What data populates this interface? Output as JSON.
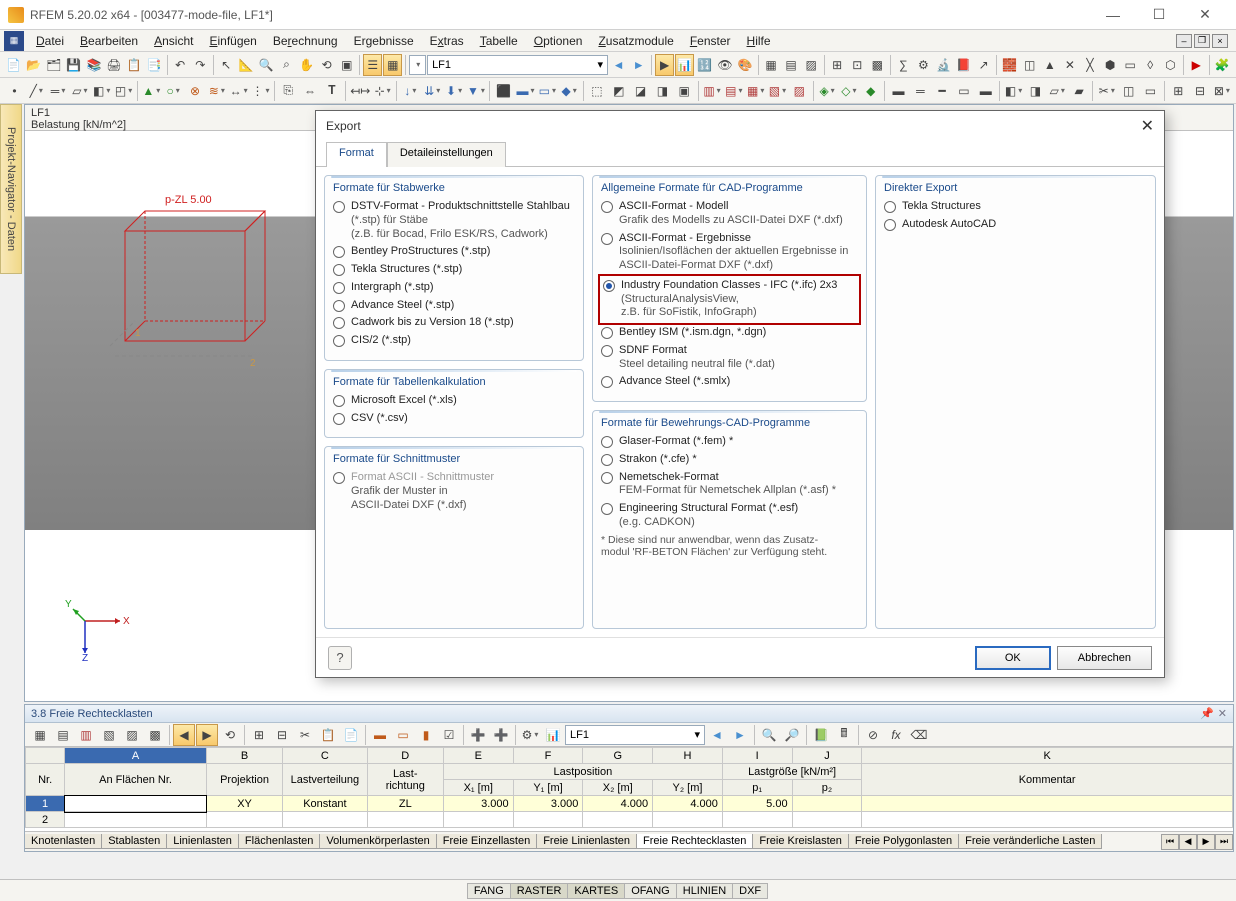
{
  "app": {
    "title": "RFEM 5.20.02 x64 - [003477-mode-file, LF1*]"
  },
  "menu": {
    "items": [
      "Datei",
      "Bearbeiten",
      "Ansicht",
      "Einfügen",
      "Berechnung",
      "Ergebnisse",
      "Extras",
      "Tabelle",
      "Optionen",
      "Zusatzmodule",
      "Fenster",
      "Hilfe"
    ]
  },
  "toolbar1": {
    "combo1": "",
    "lf": "LF1"
  },
  "sidebar": {
    "tab": "Projekt-Navigator - Daten"
  },
  "viewport": {
    "line1": "LF1",
    "line2": "Belastung [kN/m^2]",
    "label": "p-ZL 5.00",
    "axisX": "X",
    "axisZ": "Z",
    "axisY": "Y"
  },
  "dialog": {
    "title": "Export",
    "tabs": [
      "Format",
      "Detaileinstellungen"
    ],
    "groups": {
      "stab": {
        "title": "Formate für Stabwerke",
        "items": [
          {
            "l1": "DSTV-Format - Produktschnittstelle Stahlbau",
            "l2": "(*.stp) für Stäbe",
            "l3": "(z.B. für Bocad, Frilo ESK/RS, Cadwork)"
          },
          {
            "l1": "Bentley ProStructures (*.stp)"
          },
          {
            "l1": "Tekla Structures (*.stp)"
          },
          {
            "l1": "Intergraph (*.stp)"
          },
          {
            "l1": "Advance Steel (*.stp)"
          },
          {
            "l1": "Cadwork bis zu Version 18 (*.stp)"
          },
          {
            "l1": "CIS/2 (*.stp)"
          }
        ]
      },
      "tabkalk": {
        "title": "Formate für Tabellenkalkulation",
        "items": [
          {
            "l1": "Microsoft Excel (*.xls)"
          },
          {
            "l1": "CSV (*.csv)"
          }
        ]
      },
      "schnitt": {
        "title": "Formate für Schnittmuster",
        "items": [
          {
            "l1": "Format ASCII - Schnittmuster",
            "l2": "Grafik der Muster in",
            "l3": "ASCII-Datei DXF (*.dxf)",
            "disabled": true
          }
        ]
      },
      "cad": {
        "title": "Allgemeine Formate für CAD-Programme",
        "items": [
          {
            "l1": "ASCII-Format - Modell",
            "l2": "Grafik des Modells zu ASCII-Datei DXF (*.dxf)"
          },
          {
            "l1": "ASCII-Format - Ergebnisse",
            "l2": "Isolinien/Isoflächen der aktuellen Ergebnisse in",
            "l3": "ASCII-Datei-Format DXF (*.dxf)"
          },
          {
            "l1": "Industry Foundation Classes - IFC (*.ifc) 2x3",
            "l2": "(StructuralAnalysisView,",
            "l3": "z.B. für SoFistik, InfoGraph)",
            "sel": true,
            "red": true
          },
          {
            "l1": "Bentley ISM (*.ism.dgn, *.dgn)"
          },
          {
            "l1": "SDNF Format",
            "l2": "Steel detailing neutral file (*.dat)"
          },
          {
            "l1": "Advance Steel (*.smlx)"
          }
        ]
      },
      "bew": {
        "title": "Formate für Bewehrungs-CAD-Programme",
        "items": [
          {
            "l1": "Glaser-Format  (*.fem) *"
          },
          {
            "l1": "Strakon (*.cfe)  *"
          },
          {
            "l1": "Nemetschek-Format",
            "l2": "FEM-Format für Nemetschek Allplan (*.asf) *"
          },
          {
            "l1": "Engineering Structural Format (*.esf)",
            "l2": "(e.g. CADKON)"
          }
        ],
        "footnote": "*  Diese sind nur anwendbar, wenn das Zusatz-\n    modul 'RF-BETON Flächen' zur Verfügung steht."
      },
      "direkt": {
        "title": "Direkter Export",
        "items": [
          {
            "l1": "Tekla Structures"
          },
          {
            "l1": "Autodesk AutoCAD"
          }
        ]
      }
    },
    "buttons": {
      "ok": "OK",
      "cancel": "Abbrechen"
    }
  },
  "table": {
    "title": "3.8 Freie Rechtecklasten",
    "lf": "LF1",
    "colLetters": [
      "A",
      "B",
      "C",
      "D",
      "E",
      "F",
      "G",
      "H",
      "I",
      "J",
      "K"
    ],
    "headerRow1": [
      "Nr.",
      "An Flächen Nr.",
      "Projektion",
      "Lastverteilung",
      "Last-\nrichtung",
      "Lastposition",
      "",
      "",
      "",
      "Lastgröße [kN/m²]",
      "",
      "Kommentar"
    ],
    "headerRow2": [
      "",
      "",
      "",
      "",
      "",
      "X₁ [m]",
      "Y₁ [m]",
      "X₂ [m]",
      "Y₂ [m]",
      "p₁",
      "p₂",
      ""
    ],
    "rows": [
      [
        "1",
        "",
        "XY",
        "Konstant",
        "ZL",
        "3.000",
        "3.000",
        "4.000",
        "4.000",
        "5.00",
        "",
        ""
      ],
      [
        "2",
        "",
        "",
        "",
        "",
        "",
        "",
        "",
        "",
        "",
        "",
        ""
      ]
    ],
    "bottomtabs": [
      "Knotenlasten",
      "Stablasten",
      "Linienlasten",
      "Flächenlasten",
      "Volumenkörperlasten",
      "Freie Einzellasten",
      "Freie Linienlasten",
      "Freie Rechtecklasten",
      "Freie Kreislasten",
      "Freie Polygonlasten",
      "Freie veränderliche Lasten"
    ],
    "activetab": 7
  },
  "status": {
    "items": [
      "FANG",
      "RASTER",
      "KARTES",
      "OFANG",
      "HLINIEN",
      "DXF"
    ]
  }
}
